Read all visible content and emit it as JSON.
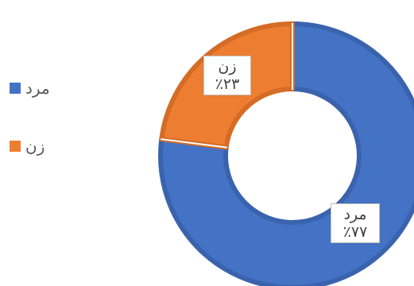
{
  "chart_data": {
    "type": "pie",
    "subtype": "doughnut",
    "categories": [
      "مرد",
      "زن"
    ],
    "values": [
      77,
      23
    ],
    "value_labels": [
      "٪۷۷",
      "٪۲۳"
    ],
    "colors": [
      "#4472C4",
      "#ED7D31"
    ],
    "legend": "left",
    "title": ""
  }
}
